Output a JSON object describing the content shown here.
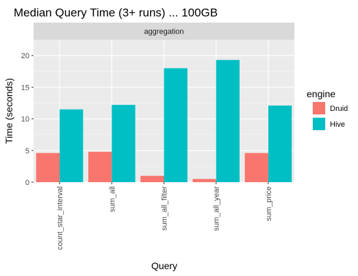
{
  "chart_data": {
    "type": "bar",
    "title": "Median Query Time (3+ runs) ... 100GB",
    "facet": "aggregation",
    "xlabel": "Query",
    "ylabel": "Time (seconds)",
    "ylim": [
      0,
      22.5
    ],
    "yticks": [
      0,
      5,
      10,
      15,
      20
    ],
    "categories": [
      "count_star_interval",
      "sum_all",
      "sum_all_filter",
      "sum_all_year",
      "sum_price"
    ],
    "series": [
      {
        "name": "Druid",
        "color": "#F8766D",
        "values": [
          4.6,
          4.8,
          1.0,
          0.5,
          4.6
        ]
      },
      {
        "name": "Hive",
        "color": "#00BFC4",
        "values": [
          11.5,
          12.2,
          18.0,
          19.3,
          12.1
        ]
      }
    ],
    "legend": {
      "title": "engine",
      "placement": "right"
    },
    "grid": true,
    "panel_color": "#EBEBEB",
    "strip_color": "#D9D9D9"
  }
}
